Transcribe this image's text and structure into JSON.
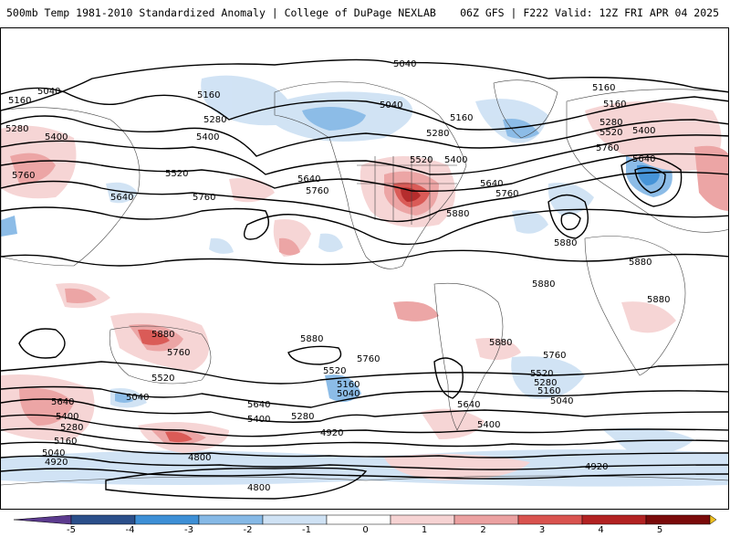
{
  "header": {
    "title_left": "500mb Temp 1981-2010 Standardized Anomaly | College of DuPage NEXLAB",
    "title_right": "06Z GFS | F222 Valid: 12Z FRI APR 04 2025"
  },
  "colors": {
    "neg5": "#5b3a8e",
    "neg4": "#2b4f8a",
    "neg3": "#3d8fd6",
    "neg2": "#86b9e6",
    "neg1": "#cfe2f4",
    "zero": "#ffffff",
    "pos1": "#f6d3d3",
    "pos2": "#eba1a1",
    "pos3": "#d9534f",
    "pos4": "#b22222",
    "pos5": "#7a0a0a",
    "over": "#f0c020"
  },
  "colorbar": {
    "ticks": [
      "-5",
      "-4",
      "-3",
      "-2",
      "-1",
      "0",
      "1",
      "2",
      "3",
      "4",
      "5"
    ]
  },
  "contour_labels": [
    {
      "text": "5040"
    },
    {
      "text": "5040"
    },
    {
      "text": "5160"
    },
    {
      "text": "5280"
    },
    {
      "text": "5400"
    },
    {
      "text": "5760"
    },
    {
      "text": "5640"
    },
    {
      "text": "5160"
    },
    {
      "text": "5280"
    },
    {
      "text": "5400"
    },
    {
      "text": "5520"
    },
    {
      "text": "5640"
    },
    {
      "text": "5760"
    },
    {
      "text": "5040"
    },
    {
      "text": "5160"
    },
    {
      "text": "5280"
    },
    {
      "text": "5760"
    },
    {
      "text": "5520"
    },
    {
      "text": "5400"
    },
    {
      "text": "5640"
    },
    {
      "text": "5760"
    },
    {
      "text": "5880"
    },
    {
      "text": "5160"
    },
    {
      "text": "5160"
    },
    {
      "text": "5280"
    },
    {
      "text": "5520"
    },
    {
      "text": "5400"
    },
    {
      "text": "5760"
    },
    {
      "text": "5640"
    },
    {
      "text": "5880"
    },
    {
      "text": "5880"
    },
    {
      "text": "5880"
    },
    {
      "text": "5880"
    },
    {
      "text": "5880"
    },
    {
      "text": "5880"
    },
    {
      "text": "5880"
    },
    {
      "text": "5760"
    },
    {
      "text": "5520"
    },
    {
      "text": "5040"
    },
    {
      "text": "5640"
    },
    {
      "text": "5400"
    },
    {
      "text": "5280"
    },
    {
      "text": "5160"
    },
    {
      "text": "5040"
    },
    {
      "text": "4920"
    },
    {
      "text": "4800"
    },
    {
      "text": "5640"
    },
    {
      "text": "5400"
    },
    {
      "text": "5280"
    },
    {
      "text": "4920"
    },
    {
      "text": "5760"
    },
    {
      "text": "5520"
    },
    {
      "text": "5160"
    },
    {
      "text": "5040"
    },
    {
      "text": "5640"
    },
    {
      "text": "5400"
    },
    {
      "text": "4800"
    },
    {
      "text": "5760"
    },
    {
      "text": "5520"
    },
    {
      "text": "5280"
    },
    {
      "text": "5160"
    },
    {
      "text": "5040"
    },
    {
      "text": "4920"
    }
  ]
}
